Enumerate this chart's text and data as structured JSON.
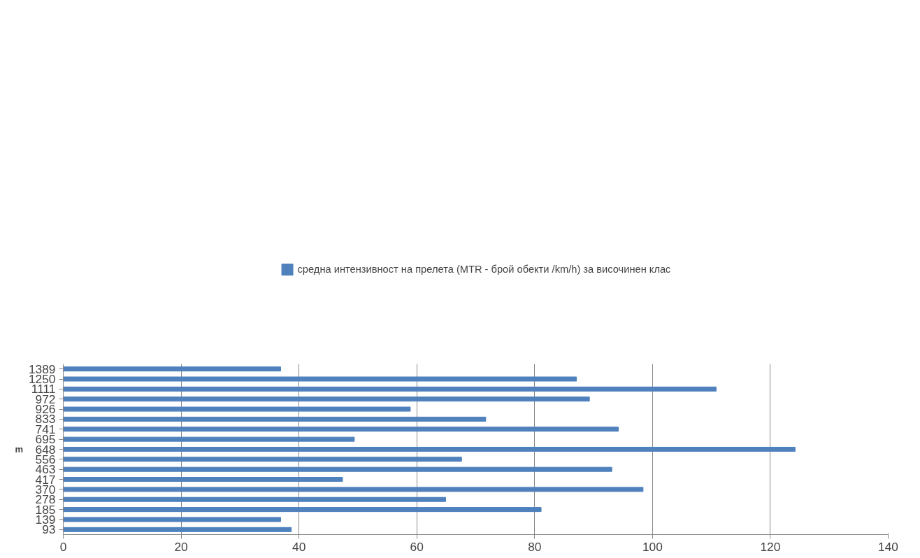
{
  "chart_data": {
    "type": "bar",
    "orientation": "horizontal",
    "ylabel": "m",
    "categories": [
      "1389",
      "1250",
      "1111",
      "972",
      "926",
      "833",
      "741",
      "695",
      "648",
      "556",
      "463",
      "417",
      "370",
      "278",
      "185",
      "139",
      "93"
    ],
    "series": [
      {
        "name": "средна интензивност на прелета (MTR - брой обекти /km/h) за височинен клас",
        "color": "#4f81bd",
        "values": [
          36.9,
          87.1,
          110.8,
          89.3,
          58.9,
          71.7,
          94.2,
          49.4,
          124.2,
          67.6,
          93.1,
          47.4,
          98.4,
          64.9,
          81.1,
          36.9,
          38.7
        ]
      }
    ],
    "xlim": [
      0,
      140
    ],
    "xticks": [
      0,
      20,
      40,
      60,
      80,
      100,
      120,
      140
    ],
    "grid": "x",
    "legend": "top"
  }
}
